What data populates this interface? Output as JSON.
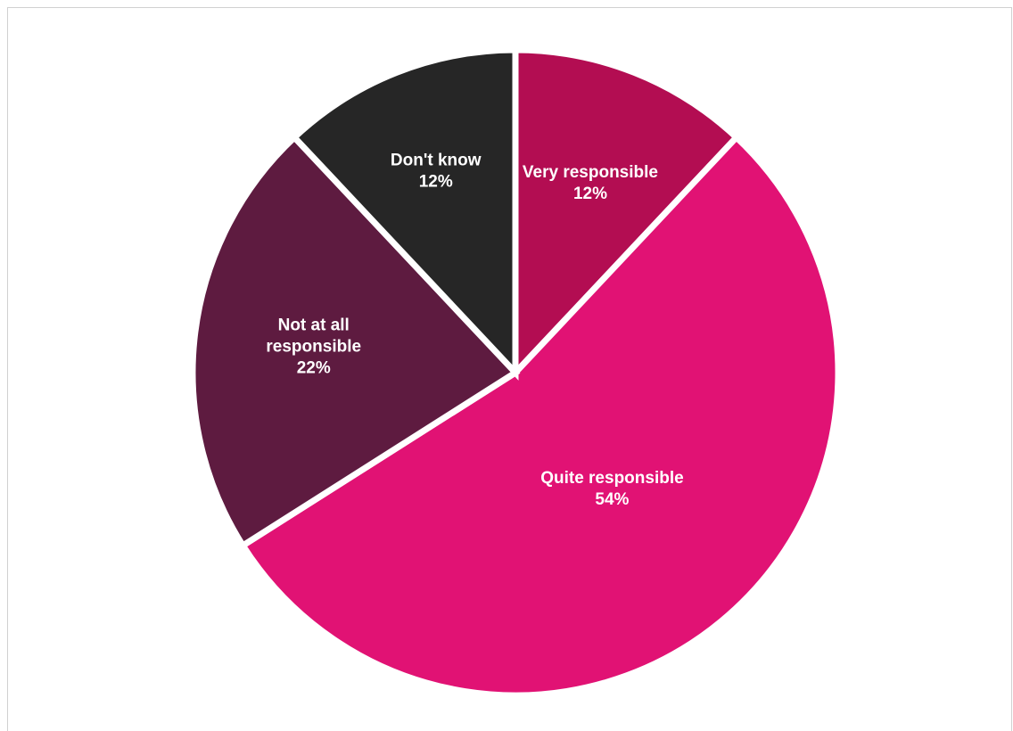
{
  "chart_data": {
    "type": "pie",
    "start_angle_deg": 0,
    "direction": "clockwise",
    "slices": [
      {
        "label_lines": [
          "Very responsible"
        ],
        "value": 12,
        "value_label": "12%",
        "color": "#B30D52"
      },
      {
        "label_lines": [
          "Quite responsible"
        ],
        "value": 54,
        "value_label": "54%",
        "color": "#E11274"
      },
      {
        "label_lines": [
          "Not at all",
          "responsible"
        ],
        "value": 22,
        "value_label": "22%",
        "color": "#5E1B40"
      },
      {
        "label_lines": [
          "Don't know"
        ],
        "value": 12,
        "value_label": "12%",
        "color": "#262626"
      }
    ],
    "title": "",
    "legend": "none",
    "label_color": "#FFFFFF"
  }
}
